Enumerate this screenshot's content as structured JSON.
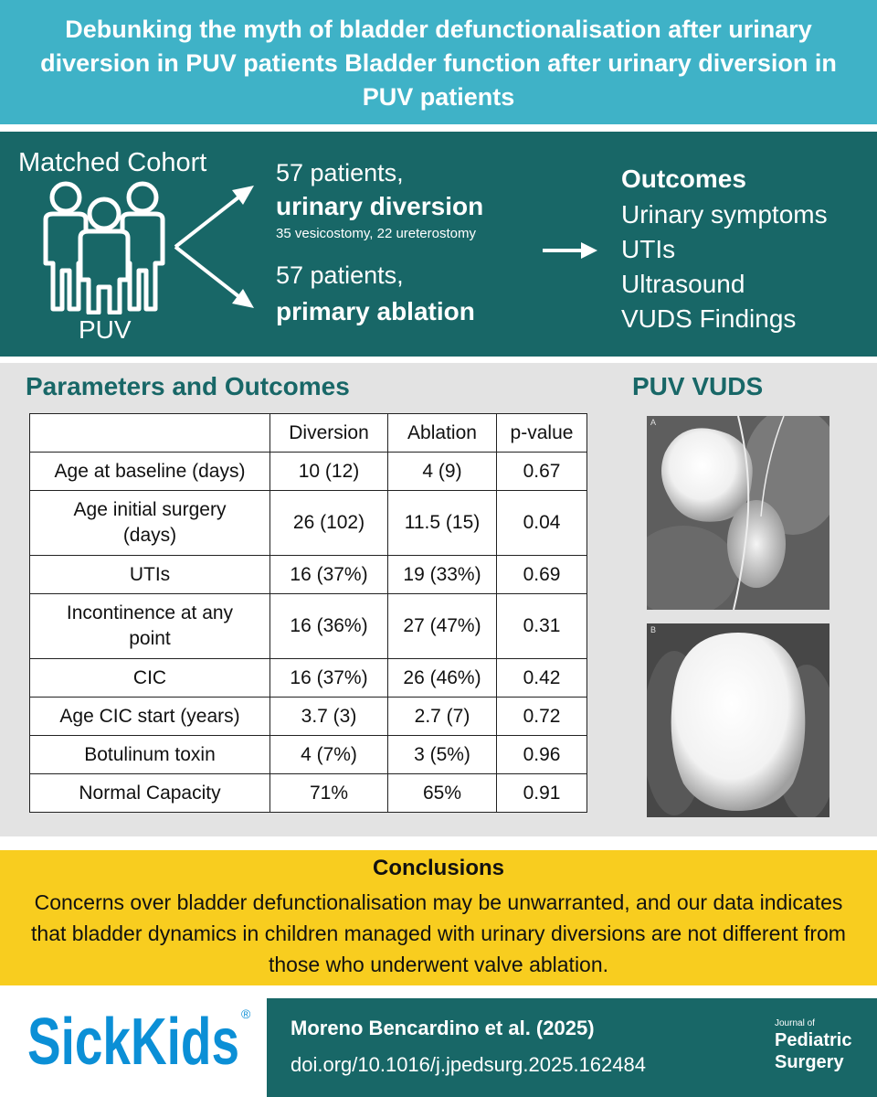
{
  "title": "Debunking the myth of bladder defunctionalisation after urinary diversion in PUV patients Bladder function after urinary diversion in PUV patients",
  "cohort": {
    "label": "Matched Cohort",
    "icon": "people-group-icon",
    "condition": "PUV",
    "groups": [
      {
        "count": "57 patients,",
        "type": "urinary diversion",
        "detail": "35 vesicostomy, 22 ureterostomy"
      },
      {
        "count": "57 patients,",
        "type": "primary ablation"
      }
    ]
  },
  "outcomes": {
    "heading": "Outcomes",
    "items": [
      "Urinary symptoms",
      "UTIs",
      "Ultrasound",
      "VUDS Findings"
    ]
  },
  "parameters": {
    "heading": "Parameters and Outcomes",
    "table": {
      "headers": [
        "",
        "Diversion",
        "Ablation",
        "p-value"
      ],
      "rows": [
        {
          "parameter": "Age at baseline (days)",
          "diversion": "10 (12)",
          "ablation": "4 (9)",
          "p_value": "0.67"
        },
        {
          "parameter": "Age initial surgery (days)",
          "diversion": "26 (102)",
          "ablation": "11.5 (15)",
          "p_value": "0.04"
        },
        {
          "parameter": "UTIs",
          "diversion": "16 (37%)",
          "ablation": "19 (33%)",
          "p_value": "0.69"
        },
        {
          "parameter": "Incontinence at any point",
          "diversion": "16 (36%)",
          "ablation": "27 (47%)",
          "p_value": "0.31"
        },
        {
          "parameter": "CIC",
          "diversion": "16 (37%)",
          "ablation": "26 (46%)",
          "p_value": "0.42"
        },
        {
          "parameter": "Age CIC start (years)",
          "diversion": "3.7 (3)",
          "ablation": "2.7 (7)",
          "p_value": "0.72"
        },
        {
          "parameter": "Botulinum toxin",
          "diversion": "4 (7%)",
          "ablation": "3 (5%)",
          "p_value": "0.96"
        },
        {
          "parameter": "Normal Capacity",
          "diversion": "71%",
          "ablation": "65%",
          "p_value": "0.91"
        }
      ]
    }
  },
  "vuds": {
    "heading": "PUV VUDS",
    "images": [
      {
        "label": "A"
      },
      {
        "label": "B"
      }
    ]
  },
  "conclusions": {
    "heading": "Conclusions",
    "text": "Concerns over bladder defunctionalisation may be unwarranted, and our data indicates that bladder dynamics in children managed with urinary diversions are not different from those who underwent valve ablation."
  },
  "footer": {
    "logo": {
      "text_sick": "Sick",
      "text_kids": "Kids",
      "registered": "®",
      "color": "#0b8fd6"
    },
    "citation": {
      "author": "Moreno Bencardino et al. (2025)",
      "doi": "doi.org/10.1016/j.jpedsurg.2025.162484"
    },
    "journal": {
      "line1": "Journal of",
      "line2": "Pediatric",
      "line3": "Surgery"
    }
  },
  "colors": {
    "banner": "#3fb2c7",
    "teal": "#186767",
    "grey": "#e3e3e3",
    "yellow": "#f8cd1f"
  }
}
